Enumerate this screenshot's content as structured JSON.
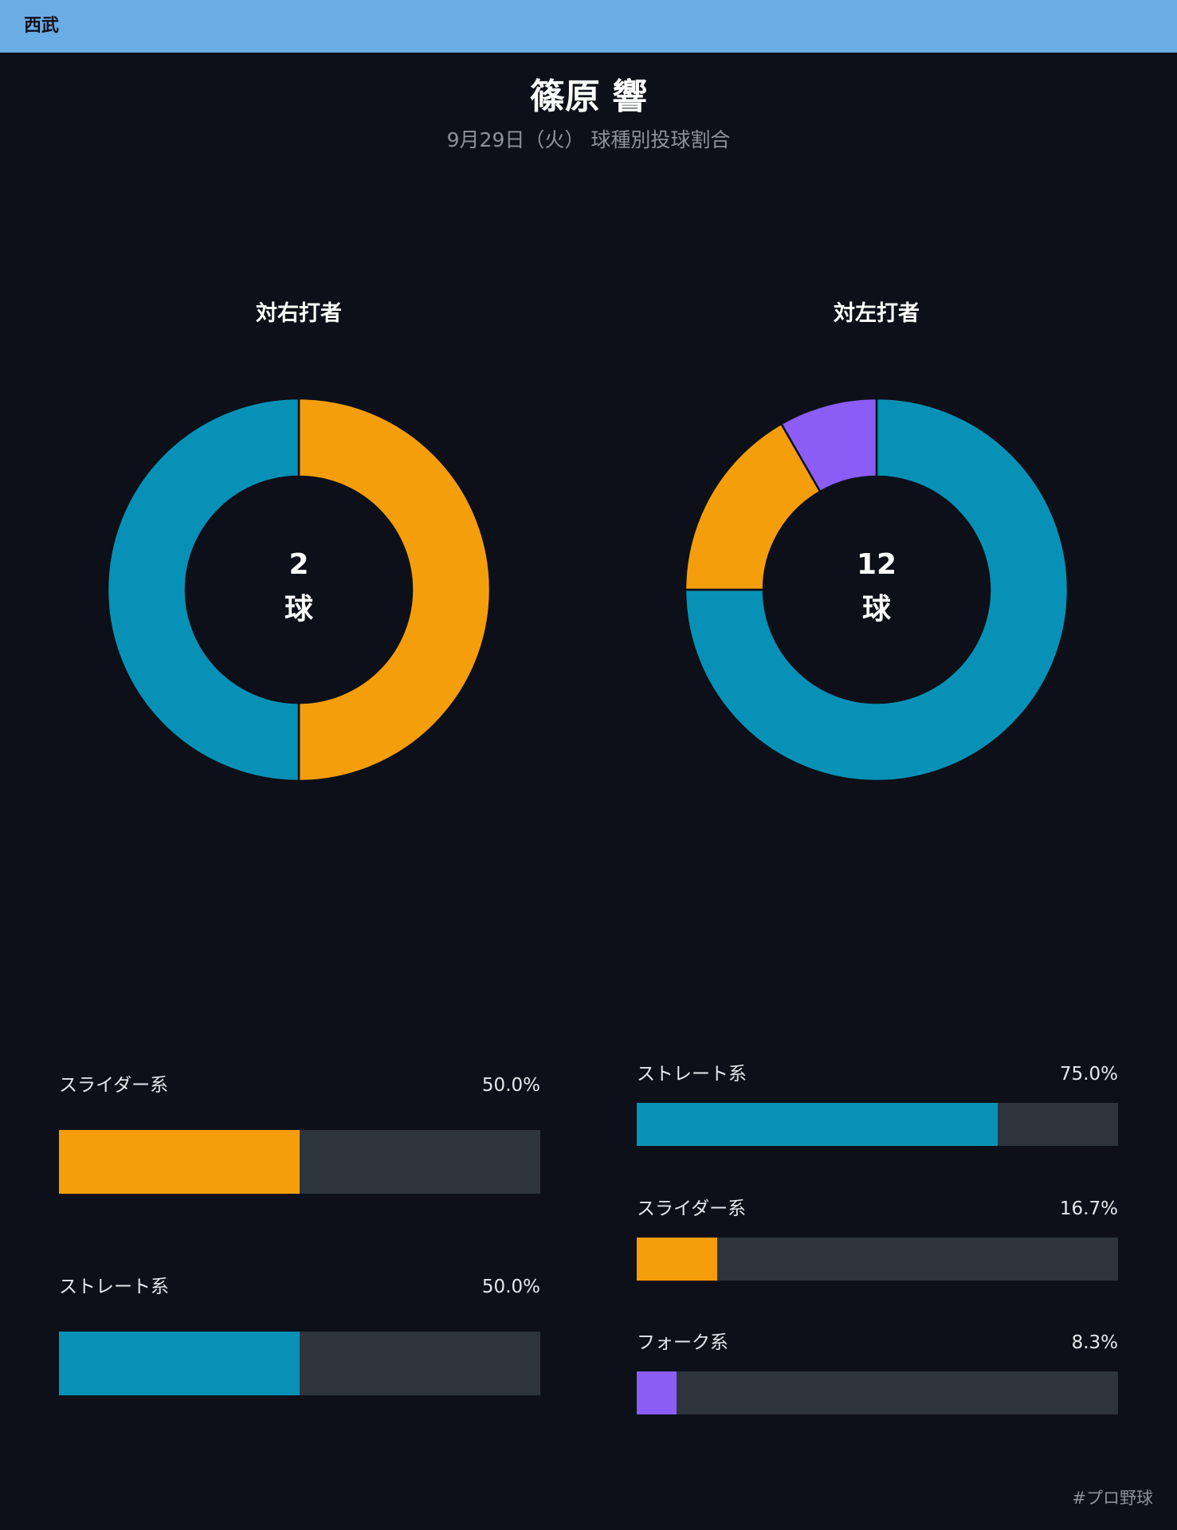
{
  "header": {
    "team": "西武"
  },
  "title": "篠原 響",
  "subtitle": "9月29日（火） 球種別投球割合",
  "colors": {
    "straight": "#0891b6",
    "slider": "#f59e0b",
    "fork": "#8b5cf6",
    "track": "#2e343b",
    "header_bg": "#6aade4",
    "background": "#0d1018"
  },
  "chart_data": [
    {
      "type": "pie",
      "title": "対右打者",
      "total": {
        "count": "2",
        "unit": "球"
      },
      "slices": [
        {
          "name": "スライダー系",
          "value": 50.0,
          "label": "50.0%",
          "color": "#f59e0b"
        },
        {
          "name": "ストレート系",
          "value": 50.0,
          "label": "50.0%",
          "color": "#0891b6"
        }
      ]
    },
    {
      "type": "pie",
      "title": "対左打者",
      "total": {
        "count": "12",
        "unit": "球"
      },
      "slices": [
        {
          "name": "ストレート系",
          "value": 75.0,
          "label": "75.0%",
          "color": "#0891b6"
        },
        {
          "name": "スライダー系",
          "value": 16.7,
          "label": "16.7%",
          "color": "#f59e0b"
        },
        {
          "name": "フォーク系",
          "value": 8.3,
          "label": "8.3%",
          "color": "#8b5cf6"
        }
      ]
    }
  ],
  "footer": {
    "hashtag": "#プロ野球"
  }
}
